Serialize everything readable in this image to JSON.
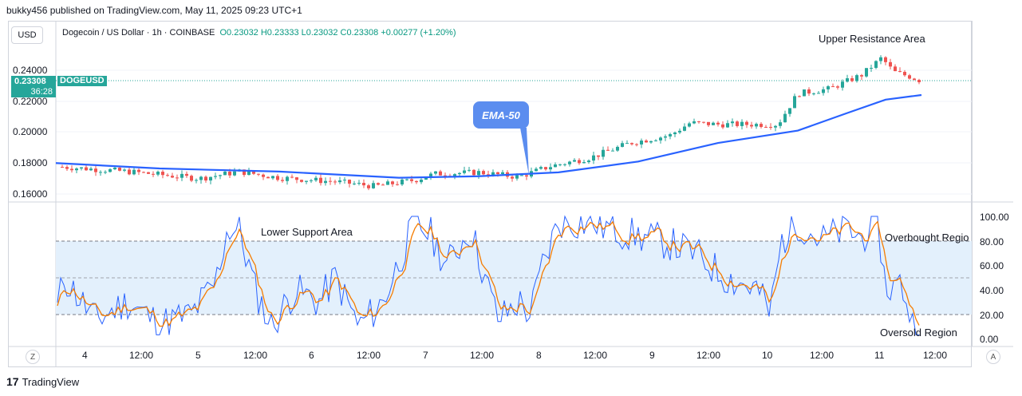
{
  "credit": "bukky456 published on TradingView.com, May 11, 2025 09:23 UTC+1",
  "currency_button": "USD",
  "symbol": {
    "name": "Dogecoin / US Dollar · 1h · COINBASE",
    "ohlc": "O0.23032 H0.23333 L0.23032 C0.23308 +0.00277 (+1.20%)"
  },
  "price_labels": [
    "0.24000",
    "0.22000",
    "0.20000",
    "0.18000",
    "0.16000"
  ],
  "current_price": "0.23308",
  "countdown": "36:28",
  "symbol_tag": "DOGEUSD",
  "rsi_labels": [
    "100.00",
    "80.00",
    "60.00",
    "40.00",
    "20.00",
    "0.00"
  ],
  "time_labels": [
    "4",
    "12:00",
    "5",
    "12:00",
    "6",
    "12:00",
    "7",
    "12:00",
    "8",
    "12:00",
    "9",
    "12:00",
    "10",
    "12:00",
    "11",
    "12:00"
  ],
  "annotations": {
    "upper_resistance": "Upper Resistance Area",
    "lower_support": "Lower Support Area",
    "overbought": "Overbought Regio",
    "oversold": "Oversold Region",
    "ema": "EMA-50"
  },
  "corner_buttons": {
    "left": "Z",
    "right": "A"
  },
  "footer": "TradingView",
  "colors": {
    "up": "#26a69a",
    "down": "#ef5350",
    "ema": "#2962ff",
    "stoch_k": "#2962ff",
    "stoch_d": "#f57c00",
    "band": "#e3f0fc"
  }
}
